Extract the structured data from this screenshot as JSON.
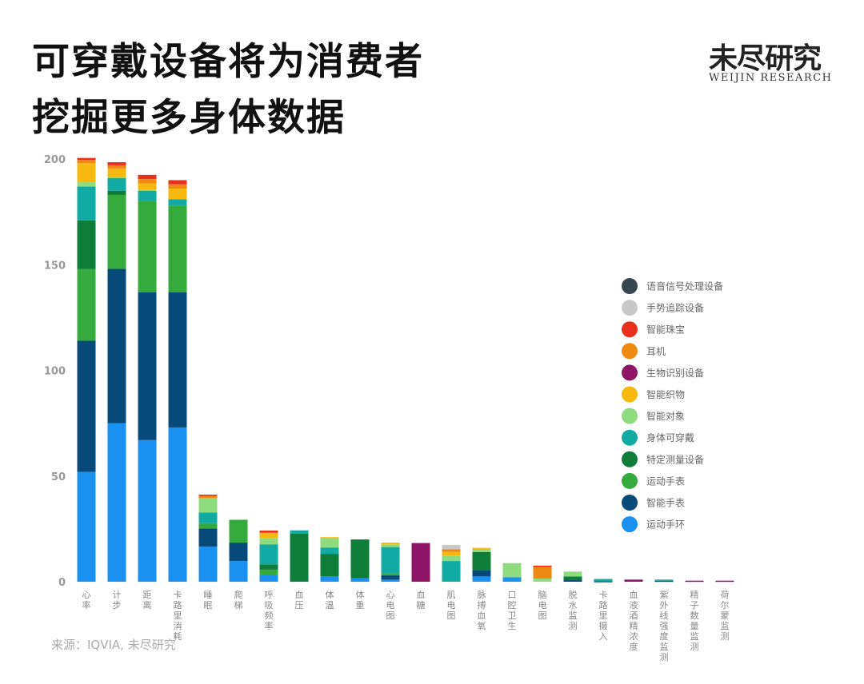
{
  "title_lines": [
    "可穿戴设备将为消费者",
    "挖掘更多身体数据"
  ],
  "logo": {
    "cn": "未尽研究",
    "en": "WEIJIN RESEARCH"
  },
  "source": "来源：IQVIA, 未尽研究",
  "chart_data": {
    "type": "bar",
    "stacked": true,
    "ylim": [
      0,
      200
    ],
    "yticks": [
      0,
      50,
      100,
      150,
      200
    ],
    "grid": false,
    "legend_position": "right",
    "categories": [
      "心率",
      "计步",
      "距离",
      "卡路里消耗",
      "睡眠",
      "爬梯",
      "呼吸频率",
      "血压",
      "体温",
      "体重",
      "心电图",
      "血糖",
      "肌电图",
      "脉搏血氧",
      "口腔卫生",
      "脑电图",
      "脱水监测",
      "卡路里摄入",
      "血液酒精浓度",
      "紫外线强度监测",
      "精子数量监测",
      "荷尔蒙监测"
    ],
    "series": [
      {
        "name": "运动手环",
        "color": "#1a91f0",
        "values": [
          52,
          75,
          67,
          73,
          16.6,
          9.8,
          3.2,
          0,
          2.5,
          1.6,
          1,
          0,
          0,
          2.5,
          2.1,
          0,
          0,
          0,
          0,
          0,
          0,
          0
        ]
      },
      {
        "name": "智能手表",
        "color": "#074a7a",
        "values": [
          62,
          73,
          70,
          64,
          8.6,
          8.7,
          0,
          0,
          0,
          0,
          2,
          0,
          0,
          2.8,
          0,
          0,
          1,
          0.3,
          0,
          0.5,
          0,
          0
        ]
      },
      {
        "name": "运动手表",
        "color": "#35ab3d",
        "values": [
          34,
          35,
          43,
          41,
          2.5,
          10.8,
          2.5,
          0,
          0,
          0,
          1,
          0,
          0,
          0,
          0,
          0,
          0,
          0,
          0,
          0,
          0,
          0
        ]
      },
      {
        "name": "特定测量设备",
        "color": "#0f7d3a",
        "values": [
          23,
          2,
          0,
          0,
          0,
          0,
          2.5,
          22.7,
          10.7,
          18.4,
          0,
          0,
          0,
          8.8,
          0,
          0,
          1.5,
          0,
          0,
          0,
          0,
          0
        ]
      },
      {
        "name": "身体可穿戴",
        "color": "#12aaa2",
        "values": [
          16,
          6,
          5,
          3,
          5,
          0,
          9.5,
          1.6,
          3,
          0,
          12.4,
          0,
          9.8,
          0,
          0,
          0,
          0,
          1,
          0,
          0.5,
          0,
          0
        ]
      },
      {
        "name": "智能对象",
        "color": "#8fdc7e",
        "values": [
          2,
          0.5,
          0.5,
          0,
          7,
          0,
          3,
          0,
          4.3,
          0,
          1.3,
          0,
          2.6,
          1,
          6.7,
          1.5,
          2.3,
          0,
          0,
          0,
          0,
          0
        ]
      },
      {
        "name": "智能织物",
        "color": "#f7b90f",
        "values": [
          9,
          4,
          3,
          5,
          0,
          0,
          2.5,
          0,
          0.6,
          0,
          0.8,
          0,
          1.7,
          0.9,
          0,
          0,
          0,
          0,
          0,
          0,
          0,
          0
        ]
      },
      {
        "name": "生物识别设备",
        "color": "#8e1466",
        "values": [
          0,
          0,
          0,
          0,
          0,
          0,
          0,
          0,
          0,
          0,
          0,
          18.3,
          0,
          0,
          0,
          0,
          0,
          0,
          1,
          0,
          0.5,
          0.5
        ]
      },
      {
        "name": "耳机",
        "color": "#ee8a12",
        "values": [
          1.5,
          1.5,
          2,
          2,
          1,
          0,
          0,
          0,
          0,
          0,
          0,
          0,
          1.3,
          0,
          0,
          5.4,
          0,
          0,
          0,
          0,
          0,
          0
        ]
      },
      {
        "name": "智能珠宝",
        "color": "#e8301c",
        "values": [
          1,
          1.5,
          2,
          2,
          0.5,
          0,
          1,
          0,
          0,
          0,
          0,
          0,
          0,
          0,
          0,
          0.7,
          0,
          0,
          0,
          0,
          0,
          0
        ]
      },
      {
        "name": "手势追踪设备",
        "color": "#c8c8c8",
        "values": [
          0,
          0,
          0,
          0,
          0,
          0,
          0,
          0,
          0,
          0,
          0,
          0,
          2,
          0,
          0,
          0,
          0,
          0,
          0,
          0,
          0,
          0
        ]
      },
      {
        "name": "语音信号处理设备",
        "color": "#37474f",
        "values": [
          0,
          0,
          0,
          0,
          0,
          0,
          0,
          0,
          0,
          0,
          0,
          0,
          0,
          0,
          0,
          0,
          0,
          0,
          0,
          0,
          0,
          0
        ]
      }
    ]
  }
}
